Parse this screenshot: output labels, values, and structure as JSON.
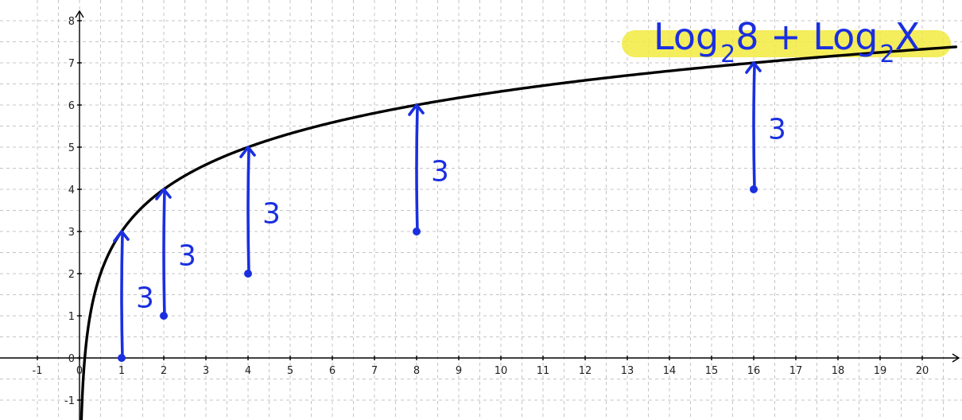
{
  "chart_data": {
    "type": "line",
    "title": "",
    "xlabel": "",
    "ylabel": "",
    "xlim": [
      -1.2,
      20.8
    ],
    "ylim": [
      -1.5,
      8.2
    ],
    "x_ticks": [
      "-1",
      "0",
      "1",
      "2",
      "3",
      "4",
      "5",
      "6",
      "7",
      "8",
      "9",
      "10",
      "11",
      "12",
      "13",
      "14",
      "15",
      "16",
      "17",
      "18",
      "19",
      "20"
    ],
    "y_ticks": [
      "-1",
      "0",
      "1",
      "2",
      "3",
      "4",
      "5",
      "6",
      "7",
      "8"
    ],
    "grid": true,
    "series": [
      {
        "function": "log2(x) + 3",
        "x_range": [
          0.0,
          20.8
        ]
      }
    ],
    "shift_arrows": [
      {
        "x": 1,
        "from_y": 0,
        "to_y": 3,
        "label": "3"
      },
      {
        "x": 2,
        "from_y": 1,
        "to_y": 4,
        "label": "3"
      },
      {
        "x": 4,
        "from_y": 2,
        "to_y": 5,
        "label": "3"
      },
      {
        "x": 8,
        "from_y": 3,
        "to_y": 6,
        "label": "3"
      },
      {
        "x": 16,
        "from_y": 4,
        "to_y": 7,
        "label": "3"
      }
    ],
    "annotation": {
      "parts": [
        {
          "kind": "base",
          "text": "Log"
        },
        {
          "kind": "sub",
          "text": "2"
        },
        {
          "kind": "base",
          "text": "8 + Log"
        },
        {
          "kind": "sub",
          "text": "2"
        },
        {
          "kind": "base",
          "text": "X"
        }
      ],
      "highlight_color": "#f2ea40"
    },
    "colors": {
      "curve": "#000000",
      "ink": "#1a2fe0",
      "grid": "#c4c4c4"
    }
  }
}
